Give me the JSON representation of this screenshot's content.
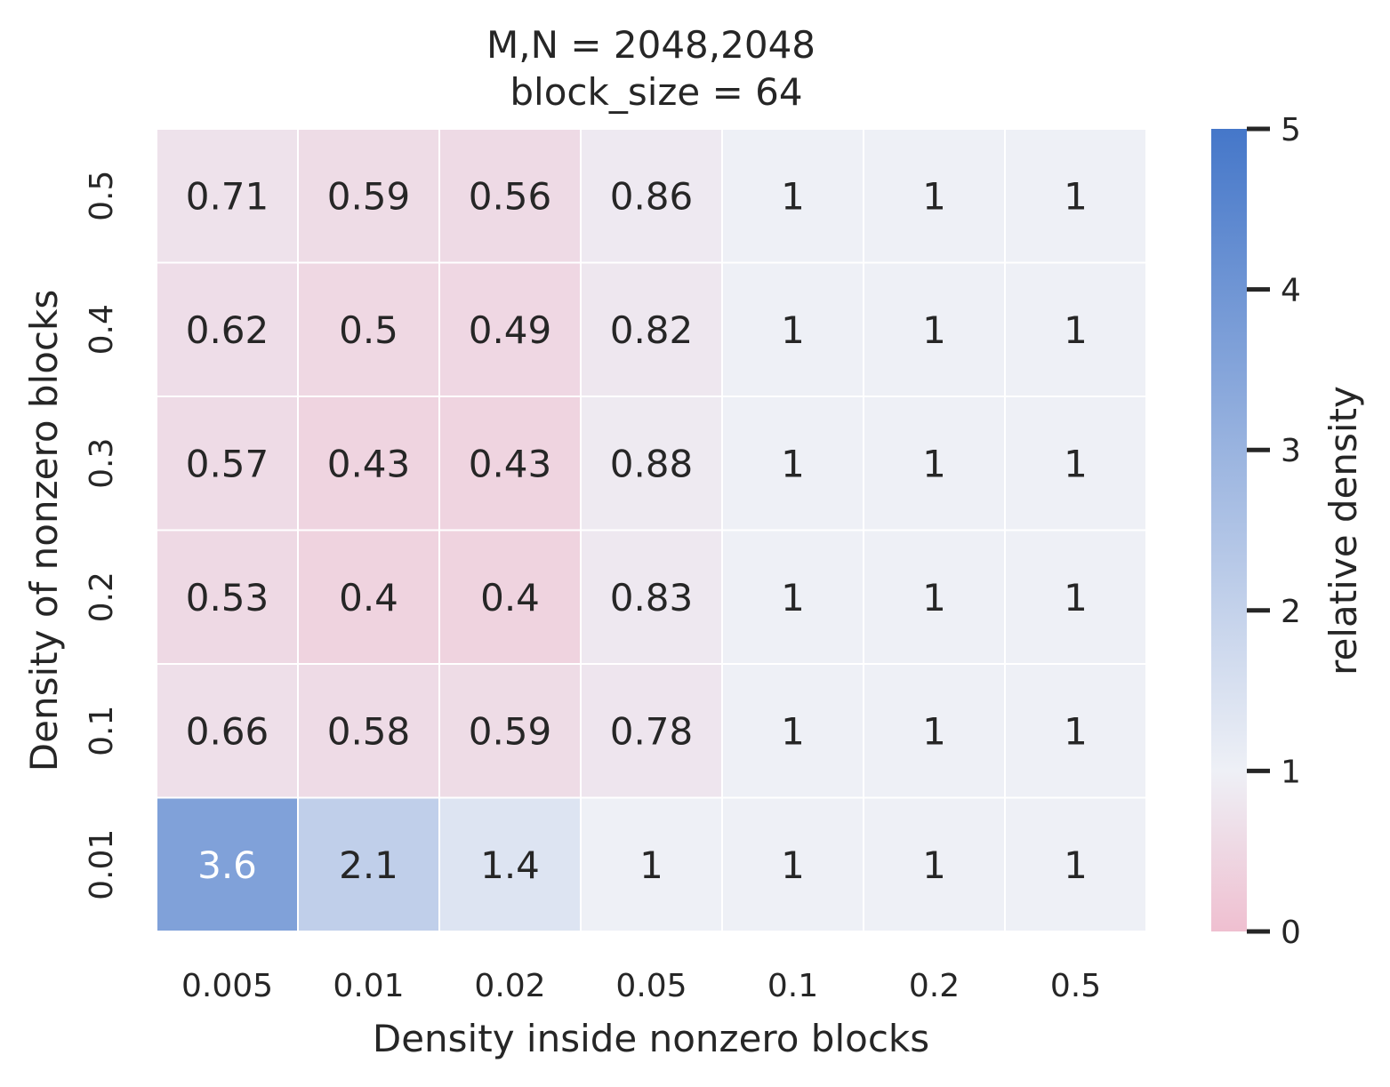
{
  "chart_data": {
    "type": "heatmap",
    "title_lines": [
      "M,N = 2048,2048",
      "block_size = 64"
    ],
    "xlabel": "Density inside nonzero blocks",
    "ylabel": "Density of nonzero blocks",
    "x_categories": [
      "0.005",
      "0.01",
      "0.02",
      "0.05",
      "0.1",
      "0.2",
      "0.5"
    ],
    "y_categories": [
      "0.5",
      "0.4",
      "0.3",
      "0.2",
      "0.1",
      "0.01"
    ],
    "values": [
      [
        0.71,
        0.59,
        0.56,
        0.86,
        1,
        1,
        1
      ],
      [
        0.62,
        0.5,
        0.49,
        0.82,
        1,
        1,
        1
      ],
      [
        0.57,
        0.43,
        0.43,
        0.88,
        1,
        1,
        1
      ],
      [
        0.53,
        0.4,
        0.4,
        0.83,
        1,
        1,
        1
      ],
      [
        0.66,
        0.58,
        0.59,
        0.78,
        1,
        1,
        1
      ],
      [
        3.6,
        2.1,
        1.4,
        1,
        1,
        1,
        1
      ]
    ],
    "colorbar": {
      "label": "relative density",
      "vmin": 0,
      "vmax": 5,
      "center": 1,
      "ticks": [
        "0",
        "1",
        "2",
        "3",
        "4",
        "5"
      ]
    },
    "colors": {
      "low": "#efbfd0",
      "mid": "#eef0f6",
      "high": "#4577c9"
    }
  }
}
